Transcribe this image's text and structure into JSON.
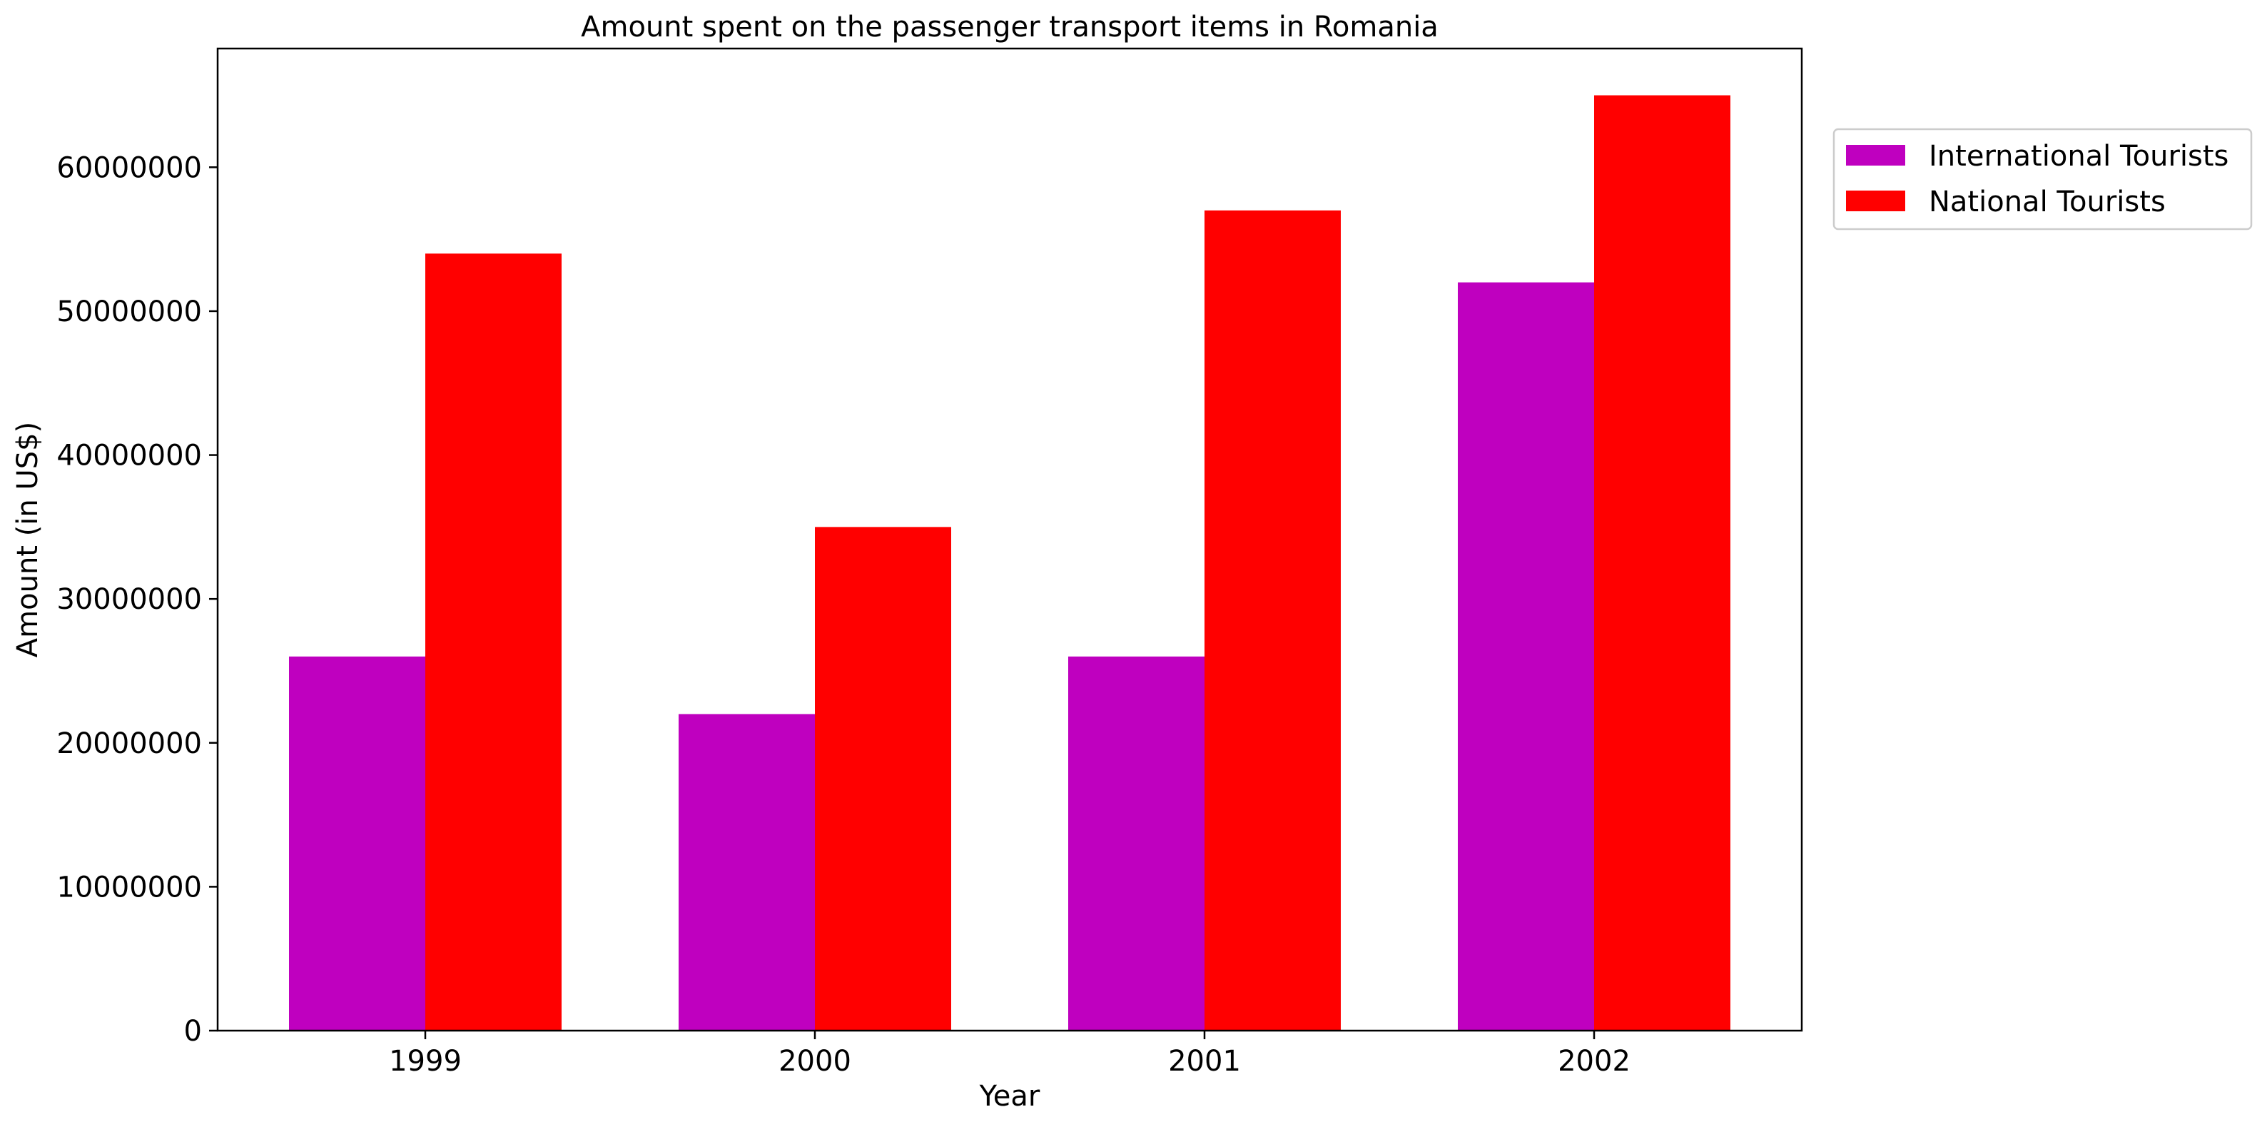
{
  "chart_data": {
    "type": "bar",
    "title": "Amount spent on the passenger transport items in Romania",
    "xlabel": "Year",
    "ylabel": "Amount (in US$)",
    "categories": [
      "1999",
      "2000",
      "2001",
      "2002"
    ],
    "series": [
      {
        "name": "International Tourists",
        "color": "#bf00bf",
        "values": [
          26000000,
          22000000,
          26000000,
          52000000
        ]
      },
      {
        "name": "National Tourists",
        "color": "#ff0000",
        "values": [
          54000000,
          35000000,
          57000000,
          65000000
        ]
      }
    ],
    "ylim": [
      0,
      68250000
    ],
    "yticks": [
      0,
      10000000,
      20000000,
      30000000,
      40000000,
      50000000,
      60000000
    ],
    "ytick_labels": [
      "0",
      "10000000",
      "20000000",
      "30000000",
      "40000000",
      "50000000",
      "60000000"
    ],
    "grid": false,
    "legend_position": "upper-right-outside"
  }
}
